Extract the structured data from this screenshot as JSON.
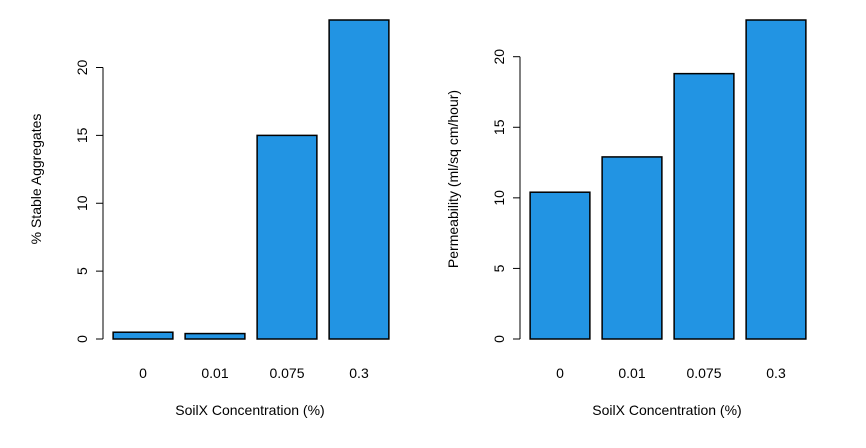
{
  "colors": {
    "bar_fill": "#2294e3",
    "axis": "#000000",
    "background": "#ffffff"
  },
  "chart_data": [
    {
      "type": "bar",
      "categories": [
        "0",
        "0.01",
        "0.075",
        "0.3"
      ],
      "values": [
        0.5,
        0.4,
        15.0,
        23.5
      ],
      "xlabel": "SoilX Concentration (%)",
      "ylabel": "% Stable Aggregates",
      "ylim": [
        0,
        23.5
      ],
      "yticks": [
        "0",
        "5",
        "10",
        "15",
        "20"
      ],
      "grid": false
    },
    {
      "type": "bar",
      "categories": [
        "0",
        "0.01",
        "0.075",
        "0.3"
      ],
      "values": [
        10.4,
        12.9,
        18.8,
        22.6
      ],
      "xlabel": "SoilX Concentration (%)",
      "ylabel": "Permeability (ml/sq cm/hour)",
      "ylim": [
        0,
        22.6
      ],
      "yticks": [
        "0",
        "5",
        "10",
        "15",
        "20"
      ],
      "grid": false
    }
  ]
}
